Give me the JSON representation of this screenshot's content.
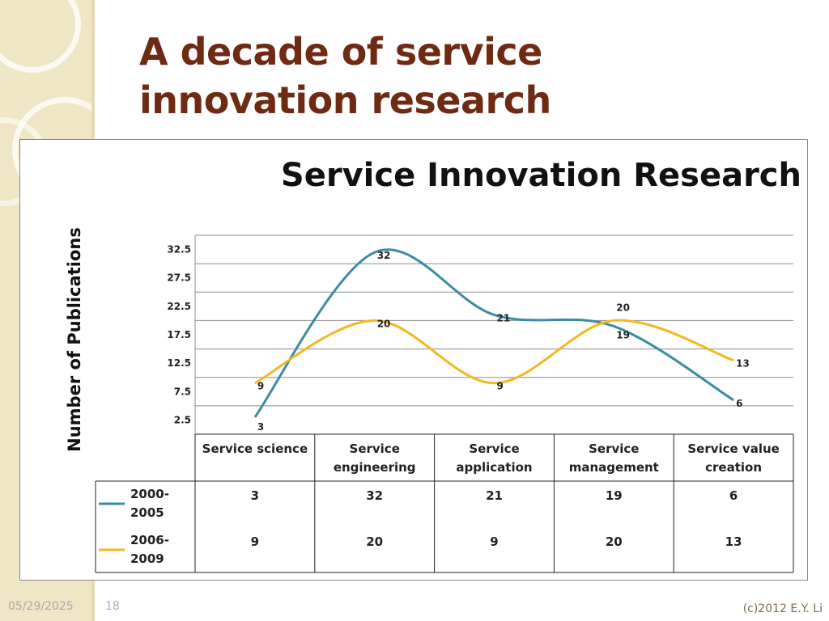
{
  "slide": {
    "title_line1": "A decade of service",
    "title_line2": "innovation research",
    "footer_date": "05/29/2025",
    "page_number": "18",
    "copyright": "(c)2012 E.Y. Li"
  },
  "colors": {
    "title": "#6e2a12",
    "series_2000_2005": "#3d8ba3",
    "series_2006_2009": "#f2b81f",
    "sidebar": "#efe6c6"
  },
  "chart_data": {
    "type": "line",
    "title": "Service Innovation Research",
    "xlabel": "",
    "ylabel": "Number of Publications",
    "categories": [
      "Service science",
      "Service engineering",
      "Service application",
      "Service management",
      "Service value creation"
    ],
    "category_lines": [
      [
        "Service science"
      ],
      [
        "Service",
        "engineering"
      ],
      [
        "Service",
        "application"
      ],
      [
        "Service",
        "management"
      ],
      [
        "Service value",
        "creation"
      ]
    ],
    "yticks": [
      "32.5",
      "27.5",
      "22.5",
      "17.5",
      "12.5",
      "7.5",
      "2.5"
    ],
    "ytick_values": [
      32.5,
      27.5,
      22.5,
      17.5,
      12.5,
      7.5,
      2.5
    ],
    "ylim": [
      0,
      35
    ],
    "grid": true,
    "smooth": true,
    "series": [
      {
        "name": "2000-2005",
        "name_lines": [
          "2000-",
          "2005"
        ],
        "values": [
          3,
          32,
          21,
          19,
          6
        ]
      },
      {
        "name": "2006-2009",
        "name_lines": [
          "2006-",
          "2009"
        ],
        "values": [
          9,
          20,
          9,
          20,
          13
        ]
      }
    ],
    "data_table": true,
    "legend": "data table"
  }
}
